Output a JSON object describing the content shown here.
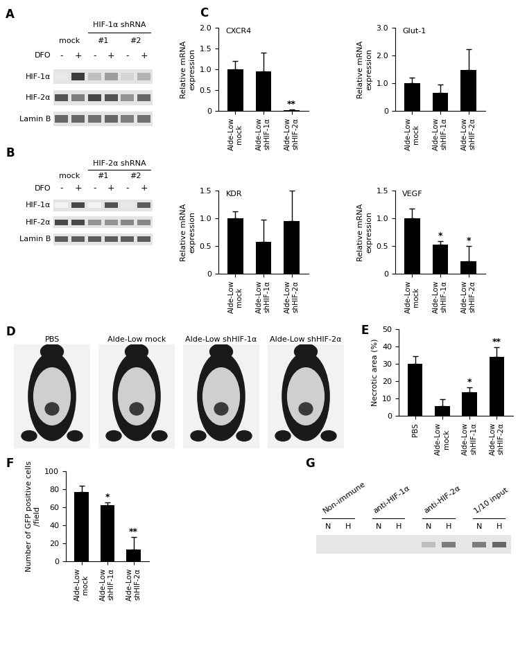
{
  "panel_labels": [
    "A",
    "B",
    "C",
    "D",
    "E",
    "F",
    "G"
  ],
  "blots": [
    {
      "lane_groups": [
        "mock",
        "#1",
        "#2"
      ],
      "header": "HIF-1α shRNA",
      "treatment": {
        "label": "DFO",
        "values": [
          "-",
          "+",
          "-",
          "+",
          "-",
          "+"
        ]
      },
      "rows": [
        {
          "label": "HIF-1α",
          "bands": [
            0.1,
            0.9,
            0.3,
            0.45,
            0.2,
            0.35
          ]
        },
        {
          "label": "HIF-2α",
          "bands": [
            0.8,
            0.6,
            0.85,
            0.8,
            0.5,
            0.7
          ]
        },
        {
          "label": "Lamin B",
          "bands": [
            0.7,
            0.7,
            0.65,
            0.7,
            0.6,
            0.65
          ]
        }
      ]
    },
    {
      "lane_groups": [
        "mock",
        "#1",
        "#2"
      ],
      "header": "HIF-2α shRNA",
      "treatment": {
        "label": "DFO",
        "values": [
          "-",
          "+",
          "-",
          "+",
          "-",
          "+"
        ]
      },
      "rows": [
        {
          "label": "HIF-1α",
          "bands": [
            0.05,
            0.85,
            0.05,
            0.8,
            0.1,
            0.75
          ]
        },
        {
          "label": "HIF-2α",
          "bands": [
            0.85,
            0.85,
            0.5,
            0.5,
            0.55,
            0.55
          ]
        },
        {
          "label": "Lamin B",
          "bands": [
            0.75,
            0.75,
            0.75,
            0.75,
            0.75,
            0.75
          ]
        }
      ]
    }
  ],
  "chart_data": [
    {
      "type": "bar",
      "title": "CXCR4",
      "y_label": "Relative mRNA\nexpression",
      "color": "#000000",
      "categories": [
        "Alde-Low\nmock",
        "Alde-Low\nshHIF-1α",
        "Alde-Low\nshHIF-2α"
      ],
      "values": [
        1.0,
        0.95,
        0.02
      ],
      "error": [
        0.2,
        0.45,
        0.01
      ],
      "significance": [
        null,
        null,
        "**"
      ],
      "ylim": [
        0,
        2.0
      ],
      "yticks": [
        0,
        0.5,
        {
          "value": 1.0,
          "label": "1.0"
        },
        1.5,
        {
          "value": 2.0,
          "label": "2.0"
        }
      ]
    },
    {
      "type": "bar",
      "title": "Glut-1",
      "y_label": "Relative mRNA\nexpression",
      "color": "#000000",
      "categories": [
        "Alde-Low\nmock",
        "Alde-Low\nshHIF-1α",
        "Alde-Low\nshHIF-2α"
      ],
      "values": [
        1.0,
        0.65,
        1.48
      ],
      "error": [
        0.2,
        0.3,
        0.75
      ],
      "significance": [
        null,
        null,
        null
      ],
      "ylim": [
        0,
        3.0
      ],
      "yticks": [
        0,
        {
          "value": 1.0,
          "label": "1.0"
        },
        {
          "value": 2.0,
          "label": "2.0"
        },
        {
          "value": 3.0,
          "label": "3.0"
        }
      ]
    },
    {
      "type": "bar",
      "title": "KDR",
      "y_label": "Relative mRNA\nexpression",
      "color": "#000000",
      "categories": [
        "Alde-Low\nmock",
        "Alde-Low\nshHIF-1α",
        "Alde-Low\nshHIF-2α"
      ],
      "values": [
        1.0,
        0.58,
        0.95
      ],
      "error": [
        0.13,
        0.4,
        0.55
      ],
      "significance": [
        null,
        null,
        null
      ],
      "ylim": [
        0,
        1.5
      ],
      "yticks": [
        0,
        0.5,
        {
          "value": 1.0,
          "label": "1.0"
        },
        1.5
      ]
    },
    {
      "type": "bar",
      "title": "VEGF",
      "y_label": "Relative mRNA\nexpression",
      "color": "#000000",
      "categories": [
        "Alde-Low\nmock",
        "Alde-Low\nshHIF-1α",
        "Alde-Low\nshHIF-2α"
      ],
      "values": [
        1.0,
        0.52,
        0.22
      ],
      "error": [
        0.17,
        0.07,
        0.28
      ],
      "significance": [
        null,
        "*",
        "*"
      ],
      "ylim": [
        0,
        1.5
      ],
      "yticks": [
        0,
        0.5,
        {
          "value": 1.0,
          "label": "1.0"
        },
        1.5
      ]
    },
    {
      "type": "bar",
      "y_label": "Necrotic area (%)",
      "color": "#000000",
      "categories": [
        "PBS",
        "Alde-Low\nmock",
        "Alde-Low\nshHIF-1α",
        "Alde-Low\nshHIF-2α"
      ],
      "values": [
        30,
        5.5,
        13.5,
        34
      ],
      "error": [
        4.5,
        4,
        3,
        5.5
      ],
      "significance": [
        null,
        null,
        "*",
        "**"
      ],
      "ylim": [
        0,
        50
      ],
      "yticks": [
        0,
        10,
        20,
        30,
        40,
        50
      ]
    },
    {
      "type": "bar",
      "y_label": "Number of GFP positive cells\n/field",
      "color": "#000000",
      "categories": [
        "Alde-Low\nmock",
        "Alde-Low\nshHIF-1α",
        "Alde-Low\nshHIF-2α"
      ],
      "values": [
        77,
        62,
        13
      ],
      "error": [
        7,
        3.5,
        14
      ],
      "significance": [
        null,
        "*",
        "**"
      ],
      "ylim": [
        0,
        100
      ],
      "yticks": [
        0,
        20,
        40,
        60,
        80,
        100
      ]
    }
  ],
  "photos": {
    "labels": [
      "PBS",
      "Alde-Low mock",
      "Alde-Low shHIF-1α",
      "Alde-Low shHIF-2α"
    ]
  },
  "gel": {
    "groups": [
      {
        "label": "Non-immune",
        "lanes": [
          "N",
          "H"
        ]
      },
      {
        "label": "anti-HIF-1α",
        "lanes": [
          "N",
          "H"
        ]
      },
      {
        "label": "anti-HIF-2α",
        "lanes": [
          "N",
          "H"
        ]
      },
      {
        "label": "1/10 input",
        "lanes": [
          "N",
          "H"
        ]
      }
    ],
    "bands": [
      0,
      0,
      0,
      0,
      0.3,
      0.6,
      0.6,
      0.7
    ]
  }
}
